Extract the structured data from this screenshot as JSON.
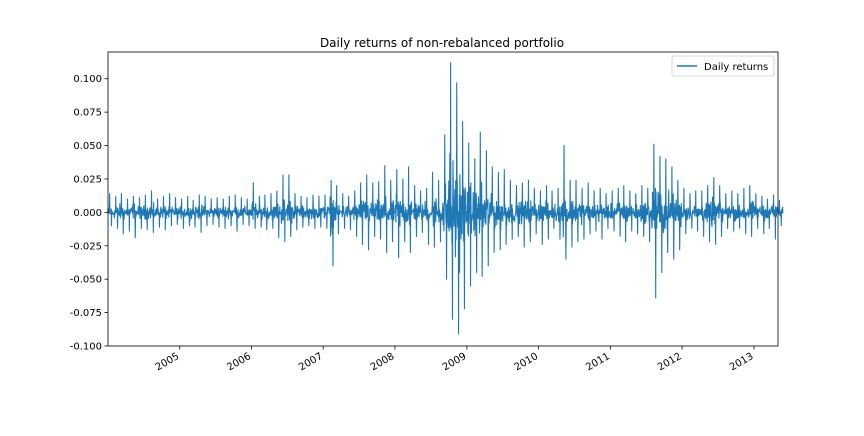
{
  "chart_data": {
    "type": "line",
    "title": "Daily returns of non-rebalanced portfolio",
    "xlabel": "",
    "ylabel": "",
    "x_range": [
      "2004-01-02",
      "2013-05-03"
    ],
    "x_ticks": [
      "2005",
      "2006",
      "2007",
      "2008",
      "2009",
      "2010",
      "2011",
      "2012",
      "2013"
    ],
    "ylim": [
      -0.1,
      0.12
    ],
    "y_ticks": [
      "-0.100",
      "-0.075",
      "-0.050",
      "-0.025",
      "0.000",
      "0.025",
      "0.050",
      "0.075",
      "0.100"
    ],
    "grid": false,
    "legend_position": "top-right",
    "series": [
      {
        "name": "Daily returns",
        "color": "#1f77b4",
        "sampling": "approximate monthly range envelope (min / max daily return per period)",
        "points": [
          [
            "2004-01",
            -0.01,
            0.014
          ],
          [
            "2004-02",
            -0.012,
            0.012
          ],
          [
            "2004-03",
            -0.016,
            0.014
          ],
          [
            "2004-04",
            -0.014,
            0.01
          ],
          [
            "2004-05",
            -0.019,
            0.012
          ],
          [
            "2004-06",
            -0.012,
            0.011
          ],
          [
            "2004-07",
            -0.013,
            0.013
          ],
          [
            "2004-08",
            -0.015,
            0.016
          ],
          [
            "2004-09",
            -0.011,
            0.01
          ],
          [
            "2004-10",
            -0.013,
            0.012
          ],
          [
            "2004-11",
            -0.01,
            0.014
          ],
          [
            "2004-12",
            -0.009,
            0.011
          ],
          [
            "2005-01",
            -0.012,
            0.01
          ],
          [
            "2005-02",
            -0.01,
            0.012
          ],
          [
            "2005-03",
            -0.011,
            0.009
          ],
          [
            "2005-04",
            -0.015,
            0.013
          ],
          [
            "2005-05",
            -0.01,
            0.012
          ],
          [
            "2005-06",
            -0.009,
            0.01
          ],
          [
            "2005-07",
            -0.011,
            0.011
          ],
          [
            "2005-08",
            -0.012,
            0.01
          ],
          [
            "2005-09",
            -0.01,
            0.012
          ],
          [
            "2005-10",
            -0.014,
            0.013
          ],
          [
            "2005-11",
            -0.009,
            0.011
          ],
          [
            "2005-12",
            -0.01,
            0.01
          ],
          [
            "2006-01",
            -0.012,
            0.022
          ],
          [
            "2006-02",
            -0.011,
            0.012
          ],
          [
            "2006-03",
            -0.013,
            0.013
          ],
          [
            "2006-04",
            -0.012,
            0.014
          ],
          [
            "2006-05",
            -0.019,
            0.016
          ],
          [
            "2006-06",
            -0.022,
            0.028
          ],
          [
            "2006-07",
            -0.018,
            0.028
          ],
          [
            "2006-08",
            -0.013,
            0.014
          ],
          [
            "2006-09",
            -0.011,
            0.012
          ],
          [
            "2006-10",
            -0.01,
            0.011
          ],
          [
            "2006-11",
            -0.012,
            0.013
          ],
          [
            "2006-12",
            -0.011,
            0.012
          ],
          [
            "2007-01",
            -0.012,
            0.013
          ],
          [
            "2007-02",
            -0.04,
            0.024
          ],
          [
            "2007-03",
            -0.016,
            0.02
          ],
          [
            "2007-04",
            -0.012,
            0.014
          ],
          [
            "2007-05",
            -0.013,
            0.012
          ],
          [
            "2007-06",
            -0.018,
            0.016
          ],
          [
            "2007-07",
            -0.024,
            0.022
          ],
          [
            "2007-08",
            -0.028,
            0.028
          ],
          [
            "2007-09",
            -0.018,
            0.022
          ],
          [
            "2007-10",
            -0.02,
            0.023
          ],
          [
            "2007-11",
            -0.03,
            0.035
          ],
          [
            "2007-12",
            -0.022,
            0.024
          ],
          [
            "2008-01",
            -0.034,
            0.032
          ],
          [
            "2008-02",
            -0.022,
            0.025
          ],
          [
            "2008-03",
            -0.03,
            0.034
          ],
          [
            "2008-04",
            -0.018,
            0.02
          ],
          [
            "2008-05",
            -0.015,
            0.016
          ],
          [
            "2008-06",
            -0.024,
            0.018
          ],
          [
            "2008-07",
            -0.026,
            0.03
          ],
          [
            "2008-08",
            -0.022,
            0.024
          ],
          [
            "2008-09",
            -0.05,
            0.058
          ],
          [
            "2008-10",
            -0.08,
            0.112
          ],
          [
            "2008-11",
            -0.091,
            0.097
          ],
          [
            "2008-12",
            -0.072,
            0.068
          ],
          [
            "2009-01",
            -0.055,
            0.052
          ],
          [
            "2009-02",
            -0.045,
            0.04
          ],
          [
            "2009-03",
            -0.048,
            0.06
          ],
          [
            "2009-04",
            -0.04,
            0.046
          ],
          [
            "2009-05",
            -0.03,
            0.034
          ],
          [
            "2009-06",
            -0.028,
            0.03
          ],
          [
            "2009-07",
            -0.024,
            0.032
          ],
          [
            "2009-08",
            -0.02,
            0.024
          ],
          [
            "2009-09",
            -0.018,
            0.02
          ],
          [
            "2009-10",
            -0.026,
            0.022
          ],
          [
            "2009-11",
            -0.022,
            0.024
          ],
          [
            "2009-12",
            -0.016,
            0.018
          ],
          [
            "2010-01",
            -0.024,
            0.016
          ],
          [
            "2010-02",
            -0.02,
            0.02
          ],
          [
            "2010-03",
            -0.012,
            0.016
          ],
          [
            "2010-04",
            -0.02,
            0.018
          ],
          [
            "2010-05",
            -0.035,
            0.05
          ],
          [
            "2010-06",
            -0.026,
            0.024
          ],
          [
            "2010-07",
            -0.022,
            0.024
          ],
          [
            "2010-08",
            -0.02,
            0.018
          ],
          [
            "2010-09",
            -0.016,
            0.022
          ],
          [
            "2010-10",
            -0.014,
            0.016
          ],
          [
            "2010-11",
            -0.02,
            0.018
          ],
          [
            "2010-12",
            -0.012,
            0.014
          ],
          [
            "2011-01",
            -0.014,
            0.016
          ],
          [
            "2011-02",
            -0.018,
            0.018
          ],
          [
            "2011-03",
            -0.022,
            0.02
          ],
          [
            "2011-04",
            -0.014,
            0.016
          ],
          [
            "2011-05",
            -0.016,
            0.014
          ],
          [
            "2011-06",
            -0.018,
            0.02
          ],
          [
            "2011-07",
            -0.022,
            0.018
          ],
          [
            "2011-08",
            -0.064,
            0.051
          ],
          [
            "2011-09",
            -0.045,
            0.042
          ],
          [
            "2011-10",
            -0.03,
            0.04
          ],
          [
            "2011-11",
            -0.035,
            0.034
          ],
          [
            "2011-12",
            -0.028,
            0.024
          ],
          [
            "2012-01",
            -0.016,
            0.018
          ],
          [
            "2012-02",
            -0.012,
            0.014
          ],
          [
            "2012-03",
            -0.014,
            0.016
          ],
          [
            "2012-04",
            -0.018,
            0.016
          ],
          [
            "2012-05",
            -0.022,
            0.02
          ],
          [
            "2012-06",
            -0.024,
            0.026
          ],
          [
            "2012-07",
            -0.018,
            0.02
          ],
          [
            "2012-08",
            -0.012,
            0.014
          ],
          [
            "2012-09",
            -0.014,
            0.016
          ],
          [
            "2012-10",
            -0.012,
            0.014
          ],
          [
            "2012-11",
            -0.016,
            0.018
          ],
          [
            "2012-12",
            -0.018,
            0.02
          ],
          [
            "2013-01",
            -0.012,
            0.014
          ],
          [
            "2013-02",
            -0.016,
            0.012
          ],
          [
            "2013-03",
            -0.012,
            0.01
          ],
          [
            "2013-04",
            -0.02,
            0.013
          ],
          [
            "2013-05",
            -0.01,
            0.009
          ]
        ]
      }
    ]
  }
}
